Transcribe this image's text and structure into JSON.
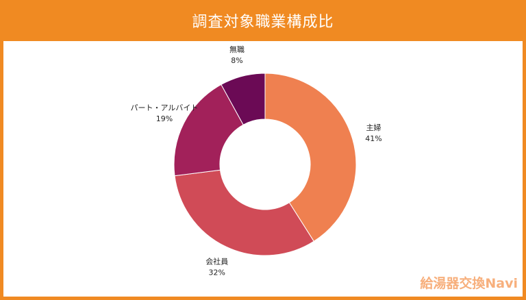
{
  "page": {
    "title": "調査対象職業構成比",
    "watermark": "給湯器交換Navi"
  },
  "chart_data": {
    "type": "pie",
    "donut": true,
    "title": "調査対象職業構成比",
    "categories": [
      "主婦",
      "会社員",
      "パート・アルバイト",
      "無職"
    ],
    "values": [
      41,
      32,
      19,
      8
    ],
    "labels": [
      "41%",
      "32%",
      "19%",
      "8%"
    ],
    "colors": [
      "#ef8050",
      "#d04b57",
      "#a2215a",
      "#6b0a55"
    ],
    "legend": "none"
  }
}
